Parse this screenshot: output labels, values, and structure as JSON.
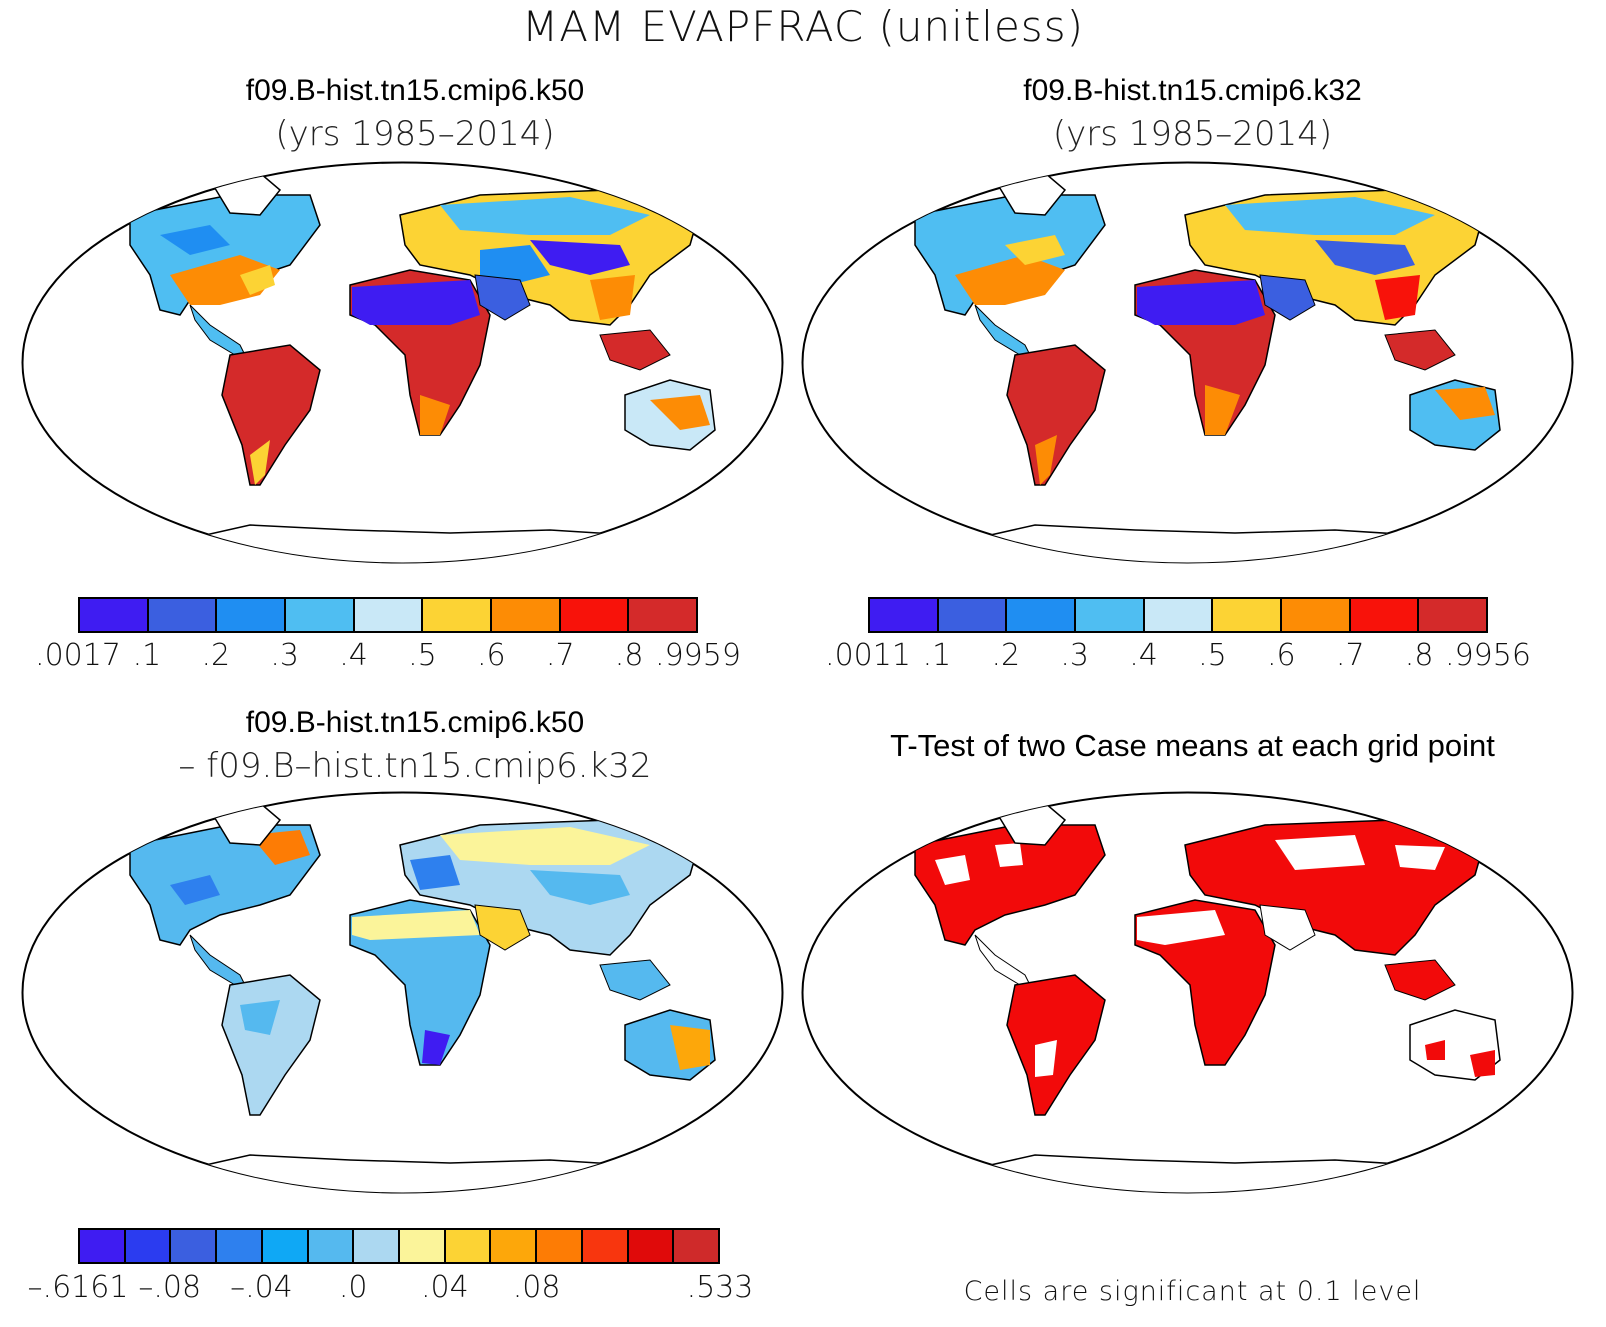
{
  "figure": {
    "title": "MAM EVAPFRAC (unitless)"
  },
  "panels": {
    "top_left": {
      "title": "f09.B-hist.tn15.cmip6.k50",
      "subtitle": "(yrs 1985–2014)",
      "colorbar": {
        "colors": [
          "#3f1cf2",
          "#3b5fe0",
          "#1f8ef2",
          "#4fbef2",
          "#c9e8f7",
          "#fcd334",
          "#fd8c05",
          "#f8120a",
          "#d42a2a"
        ],
        "tick_labels": [
          ".0017",
          ".1",
          ".2",
          ".3",
          ".4",
          ".5",
          ".6",
          ".7",
          ".8",
          ".9959"
        ]
      }
    },
    "top_right": {
      "title": "f09.B-hist.tn15.cmip6.k32",
      "subtitle": "(yrs 1985–2014)",
      "colorbar": {
        "colors": [
          "#3f1cf2",
          "#3b5fe0",
          "#1f8ef2",
          "#4fbef2",
          "#c9e8f7",
          "#fcd334",
          "#fd8c05",
          "#f8120a",
          "#d42a2a"
        ],
        "tick_labels": [
          ".0011",
          ".1",
          ".2",
          ".3",
          ".4",
          ".5",
          ".6",
          ".7",
          ".8",
          ".9956"
        ]
      }
    },
    "bottom_left": {
      "title": "f09.B-hist.tn15.cmip6.k50",
      "subtitle": "– f09.B–hist.tn15.cmip6.k32",
      "colorbar": {
        "colors": [
          "#3f1cf2",
          "#2b3cf0",
          "#3b5fe0",
          "#2e80ee",
          "#0fa8f5",
          "#55b9ef",
          "#acd8f1",
          "#fbf49a",
          "#fcd334",
          "#fda70a",
          "#fd7c05",
          "#f8360e",
          "#e00a0a",
          "#cf2a2a"
        ],
        "tick_labels": [
          "–.6161",
          "–.08",
          "–.04",
          ".0",
          ".04",
          ".08",
          ".533"
        ]
      }
    },
    "bottom_right": {
      "title": "T-Test of two Case means at each grid point",
      "note": "Cells are significant at 0.1 level",
      "significance_color": "#f20a0a"
    }
  }
}
